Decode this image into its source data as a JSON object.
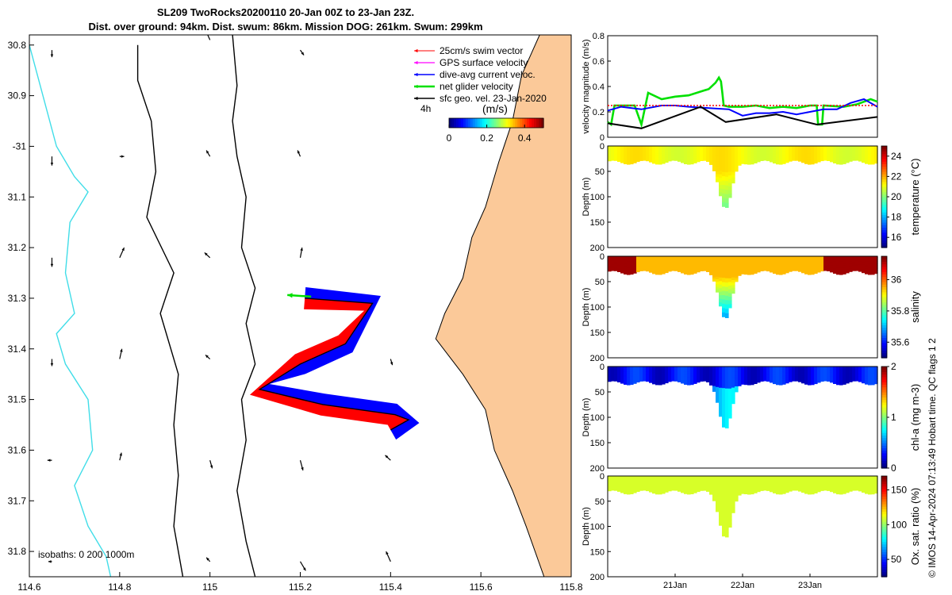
{
  "title_line1": "SL209 TwoRocks20200110 20-Jan 00Z to 23-Jan 23Z.",
  "title_line2": "Dist. over ground: 94km. Dist. swum: 86km. Mission DOG: 261km. Swum: 299km",
  "right_label": "© IMOS 14-Apr-2024 07:13:49 Hobart time. QC flags 1  2",
  "colors": {
    "land": "#fbc999",
    "isobath_0": "#40dde8",
    "isobath_200_1000": "#000000",
    "swim_vector": "#ff0000",
    "gps_velocity": "#ff00ff",
    "dive_avg_current": "#0000ff",
    "net_glider": "#00e000",
    "sfc_geo_vel": "#000000"
  },
  "chart_data": [
    {
      "type": "map",
      "xlim": [
        114.6,
        115.8
      ],
      "ylim": [
        -31.85,
        -30.78
      ],
      "x_ticks": [
        114.6,
        114.8,
        115,
        115.2,
        115.4,
        115.6,
        115.8
      ],
      "x_tick_labels": [
        "114.6",
        "114.8",
        "115",
        "115.2",
        "115.4",
        "115.6",
        "115.8"
      ],
      "y_ticks": [
        -30.8,
        -30.9,
        -31,
        -31.1,
        -31.2,
        -31.3,
        -31.4,
        -31.5,
        -31.6,
        -31.7,
        -31.8
      ],
      "y_tick_labels": [
        "30.8",
        "30.9",
        "-31",
        "31.1",
        "31.2",
        "31.3",
        "31.4",
        "31.5",
        "31.6",
        "31.7",
        "31.8"
      ],
      "legend": {
        "placement": "top-right",
        "entries": [
          "25cm/s swim vector",
          "GPS surface velocity",
          "dive-avg current veloc.",
          "net glider velocity",
          "sfc geo. vel. 23-Jan-2020"
        ],
        "interval_label": "4h",
        "colorbar_unit": "(m/s)",
        "colorbar_range": [
          0,
          0.5
        ],
        "colorbar_ticks": [
          0,
          0.2,
          0.4
        ],
        "colorbar_tick_labels": [
          "0",
          "0.2",
          "0.4"
        ]
      },
      "isobath_note": "isobaths: 0   200  1000m",
      "coastline": [
        [
          115.73,
          -30.78
        ],
        [
          115.69,
          -30.86
        ],
        [
          115.67,
          -30.95
        ],
        [
          115.64,
          -31.03
        ],
        [
          115.61,
          -31.12
        ],
        [
          115.58,
          -31.18
        ],
        [
          115.56,
          -31.26
        ],
        [
          115.52,
          -31.33
        ],
        [
          115.5,
          -31.38
        ],
        [
          115.56,
          -31.45
        ],
        [
          115.61,
          -31.52
        ],
        [
          115.63,
          -31.6
        ],
        [
          115.67,
          -31.68
        ],
        [
          115.7,
          -31.75
        ],
        [
          115.74,
          -31.85
        ]
      ],
      "isobath_0m": [
        [
          114.6,
          -30.8
        ],
        [
          114.63,
          -30.9
        ],
        [
          114.66,
          -31.0
        ],
        [
          114.7,
          -31.06
        ],
        [
          114.73,
          -31.09
        ],
        [
          114.69,
          -31.15
        ],
        [
          114.68,
          -31.25
        ],
        [
          114.7,
          -31.33
        ],
        [
          114.66,
          -31.37
        ],
        [
          114.68,
          -31.43
        ],
        [
          114.73,
          -31.5
        ],
        [
          114.74,
          -31.6
        ],
        [
          114.7,
          -31.67
        ],
        [
          114.73,
          -31.75
        ],
        [
          114.77,
          -31.81
        ],
        [
          114.78,
          -31.85
        ]
      ],
      "isobath_200m": [
        [
          114.84,
          -30.8
        ],
        [
          114.84,
          -30.87
        ],
        [
          114.87,
          -30.95
        ],
        [
          114.88,
          -31.05
        ],
        [
          114.86,
          -31.14
        ],
        [
          114.92,
          -31.25
        ],
        [
          114.89,
          -31.33
        ],
        [
          114.93,
          -31.45
        ],
        [
          114.92,
          -31.55
        ],
        [
          114.93,
          -31.65
        ],
        [
          114.92,
          -31.75
        ],
        [
          114.94,
          -31.85
        ]
      ],
      "isobath_1000m": [
        [
          115.05,
          -30.78
        ],
        [
          115.06,
          -30.88
        ],
        [
          115.05,
          -30.95
        ],
        [
          115.06,
          -31.02
        ],
        [
          115.08,
          -31.1
        ],
        [
          115.07,
          -31.2
        ],
        [
          115.1,
          -31.28
        ],
        [
          115.08,
          -31.35
        ],
        [
          115.1,
          -31.43
        ],
        [
          115.07,
          -31.5
        ],
        [
          115.08,
          -31.58
        ],
        [
          115.06,
          -31.68
        ],
        [
          115.08,
          -31.78
        ],
        [
          115.1,
          -31.85
        ]
      ],
      "glider_track": [
        [
          115.21,
          -31.3
        ],
        [
          115.36,
          -31.31
        ],
        [
          115.3,
          -31.39
        ],
        [
          115.2,
          -31.43
        ],
        [
          115.11,
          -31.48
        ],
        [
          115.25,
          -31.51
        ],
        [
          115.41,
          -31.53
        ],
        [
          115.44,
          -31.54
        ],
        [
          115.4,
          -31.56
        ]
      ],
      "sfc_geo_arrows": [
        [
          114.65,
          -30.81,
          0,
          -0.014
        ],
        [
          115,
          -30.79,
          -0.01,
          0.02
        ],
        [
          115.2,
          -30.81,
          0.008,
          -0.01
        ],
        [
          114.65,
          -31.02,
          0,
          -0.018
        ],
        [
          114.8,
          -31.02,
          0.01,
          0
        ],
        [
          115,
          -31.02,
          -0.008,
          0.012
        ],
        [
          115.2,
          -31.02,
          -0.006,
          0.012
        ],
        [
          114.65,
          -31.22,
          0,
          -0.018
        ],
        [
          114.8,
          -31.22,
          0.01,
          0.02
        ],
        [
          115,
          -31.22,
          -0.012,
          0.01
        ],
        [
          115.2,
          -31.22,
          0.004,
          0.02
        ],
        [
          114.65,
          -31.42,
          0,
          -0.014
        ],
        [
          114.8,
          -31.42,
          0.005,
          0.02
        ],
        [
          115,
          -31.42,
          -0.01,
          0.008
        ],
        [
          115.4,
          -31.42,
          0.004,
          -0.012
        ],
        [
          114.65,
          -31.62,
          -0.01,
          0
        ],
        [
          114.8,
          -31.62,
          0.004,
          0.015
        ],
        [
          115,
          -31.62,
          0.005,
          -0.016
        ],
        [
          115.2,
          -31.62,
          0.006,
          -0.02
        ],
        [
          115.4,
          -31.62,
          -0.012,
          0.01
        ],
        [
          114.65,
          -31.82,
          -0.008,
          0
        ],
        [
          115,
          -31.82,
          -0.008,
          0.008
        ],
        [
          115.2,
          -31.82,
          0.012,
          -0.018
        ],
        [
          115.4,
          -31.82,
          -0.01,
          0.02
        ]
      ]
    },
    {
      "type": "line",
      "ylabel": "velocity magnitude (m/s)",
      "xlim": [
        20,
        24
      ],
      "ylim": [
        0,
        0.8
      ],
      "y_ticks": [
        0,
        0.2,
        0.4,
        0.6,
        0.8
      ],
      "y_tick_labels": [
        "0",
        "0.2",
        "0.4",
        "0.6",
        "0.8"
      ],
      "series": [
        {
          "color": "#00e000",
          "x": [
            20,
            20.05,
            20.1,
            20.2,
            20.4,
            20.5,
            20.6,
            20.8,
            21,
            21.2,
            21.5,
            21.6,
            21.65,
            21.68,
            21.7,
            21.72,
            21.8,
            22,
            22.2,
            22.4,
            22.6,
            22.8,
            23,
            23.1,
            23.12,
            23.18,
            23.2,
            23.5,
            23.7,
            23.9,
            24
          ],
          "y": [
            0.12,
            0.1,
            0.25,
            0.25,
            0.25,
            0.1,
            0.35,
            0.3,
            0.32,
            0.33,
            0.38,
            0.43,
            0.47,
            0.44,
            0.35,
            0.25,
            0.24,
            0.24,
            0.25,
            0.23,
            0.24,
            0.23,
            0.25,
            0.25,
            0.1,
            0.1,
            0.25,
            0.24,
            0.26,
            0.3,
            0.28
          ]
        },
        {
          "color": "#0000ff",
          "x": [
            20,
            20.2,
            20.5,
            20.8,
            21,
            21.2,
            21.5,
            21.8,
            22,
            22.2,
            22.4,
            22.6,
            22.8,
            23,
            23.2,
            23.4,
            23.6,
            23.8,
            24
          ],
          "y": [
            0.21,
            0.24,
            0.22,
            0.25,
            0.25,
            0.24,
            0.23,
            0.22,
            0.17,
            0.19,
            0.19,
            0.2,
            0.18,
            0.2,
            0.22,
            0.22,
            0.27,
            0.3,
            0.24
          ]
        },
        {
          "color": "#ff0000",
          "x": [
            20,
            24
          ],
          "y": [
            0.25,
            0.25
          ]
        },
        {
          "color": "#000000",
          "x": [
            20,
            20.5,
            21.38,
            21.75,
            22.5,
            23.1,
            24
          ],
          "y": [
            0.11,
            0.07,
            0.24,
            0.12,
            0.18,
            0.1,
            0.16
          ]
        }
      ]
    },
    {
      "type": "heatmap",
      "ylabel": "Depth (m)",
      "clabel": "temperature (°C)",
      "ylim": [
        0,
        200
      ],
      "y_ticks": [
        0,
        50,
        100,
        150,
        200
      ],
      "y_tick_labels": [
        "0",
        "50",
        "100",
        "150",
        "200"
      ],
      "clim": [
        15,
        25
      ],
      "c_ticks": [
        16,
        18,
        20,
        22,
        24
      ],
      "c_tick_labels": [
        "16",
        "18",
        "20",
        "22",
        "24"
      ]
    },
    {
      "type": "heatmap",
      "ylabel": "Depth (m)",
      "clabel": "salinity",
      "ylim": [
        0,
        200
      ],
      "y_ticks": [
        0,
        50,
        100,
        150,
        200
      ],
      "y_tick_labels": [
        "0",
        "50",
        "100",
        "150",
        "200"
      ],
      "clim": [
        35.5,
        36.15
      ],
      "c_ticks": [
        35.6,
        35.8,
        36
      ],
      "c_tick_labels": [
        "35.6",
        "35.8",
        "36"
      ]
    },
    {
      "type": "heatmap",
      "ylabel": "Depth (m)",
      "clabel": "chl-a (mg m-3)",
      "ylim": [
        0,
        200
      ],
      "y_ticks": [
        0,
        50,
        100,
        150,
        200
      ],
      "y_tick_labels": [
        "0",
        "50",
        "100",
        "150",
        "200"
      ],
      "clim": [
        0,
        2
      ],
      "c_ticks": [
        0,
        1,
        2
      ],
      "c_tick_labels": [
        "0",
        "1",
        "2"
      ]
    },
    {
      "type": "heatmap",
      "ylabel": "Depth (m)",
      "clabel": "Ox. sat. ratio (%)",
      "ylim": [
        0,
        200
      ],
      "y_ticks": [
        0,
        50,
        100,
        150,
        200
      ],
      "y_tick_labels": [
        "0",
        "50",
        "100",
        "150",
        "200"
      ],
      "x_ticks": [
        21,
        22,
        23
      ],
      "x_tick_labels": [
        "21Jan",
        "22Jan",
        "23Jan"
      ],
      "clim": [
        25,
        170
      ],
      "c_ticks": [
        50,
        100,
        150
      ],
      "c_tick_labels": [
        "50",
        "100",
        "150"
      ]
    }
  ]
}
